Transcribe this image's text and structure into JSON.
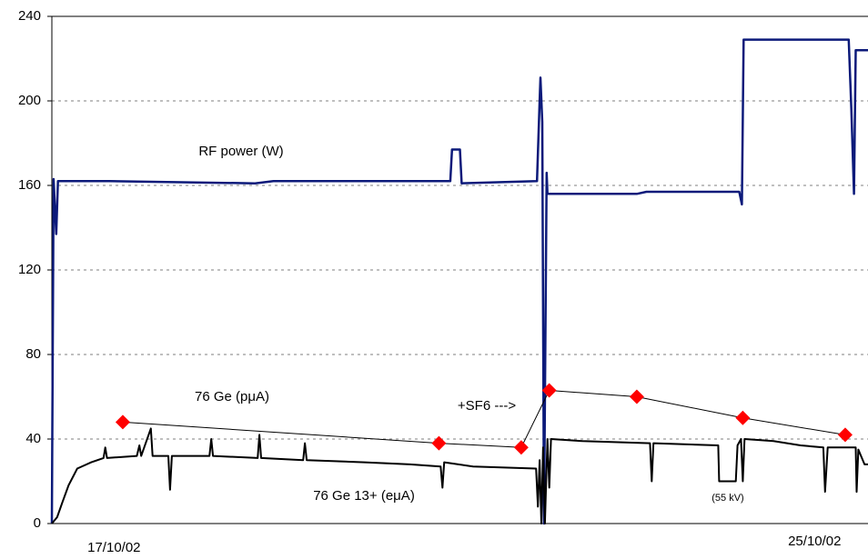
{
  "chart_data": {
    "type": "line",
    "ylim": [
      0,
      240
    ],
    "yticks": [
      0,
      40,
      80,
      120,
      160,
      200,
      240
    ],
    "xlim": [
      -0.71,
      8.61
    ],
    "xticks": [
      {
        "value": 0,
        "label": "17/10/02"
      },
      {
        "value": 8,
        "label": "25/10/02"
      }
    ],
    "grid": true,
    "series": [
      {
        "name": "RF power (W)",
        "color": "#0c1a7a",
        "width": 2.5,
        "markers": false,
        "x": [
          -0.71,
          -0.69,
          -0.66,
          -0.64,
          -0.05,
          1.61,
          1.82,
          3.84,
          3.86,
          3.95,
          3.97,
          4.83,
          4.86,
          4.87,
          4.89,
          4.91,
          4.94,
          4.95,
          5.97,
          6.08,
          7.14,
          7.17,
          7.19,
          8.39,
          8.42,
          8.45,
          8.47,
          8.61
        ],
        "values": [
          0,
          163,
          137,
          162,
          162,
          161,
          162,
          162,
          177,
          177,
          161,
          162,
          200,
          211,
          190,
          0,
          166,
          156,
          156,
          157,
          157,
          151,
          229,
          229,
          196,
          156,
          224,
          224
        ]
      },
      {
        "name": "76 Ge (pμA)",
        "color": "#000000",
        "width": 1,
        "markers": true,
        "marker_color": "#ff0000",
        "x": [
          0.1,
          3.71,
          4.65,
          4.97,
          5.97,
          7.18,
          8.35
        ],
        "values": [
          48,
          38,
          36,
          63,
          60,
          50,
          42
        ]
      },
      {
        "name": "76 Ge 13+ (eμA)",
        "color": "#000000",
        "width": 2,
        "markers": false,
        "x": [
          -0.71,
          -0.65,
          -0.59,
          -0.52,
          -0.42,
          -0.26,
          -0.12,
          -0.1,
          -0.08,
          0.26,
          0.29,
          0.31,
          0.42,
          0.44,
          0.62,
          0.64,
          0.66,
          1.09,
          1.11,
          1.13,
          1.64,
          1.66,
          1.68,
          2.16,
          2.18,
          2.2,
          2.86,
          3.38,
          3.73,
          3.75,
          3.77,
          4.1,
          4.82,
          4.84,
          4.86,
          4.88,
          4.9,
          4.92,
          4.95,
          4.97,
          4.99,
          5.35,
          6.12,
          6.14,
          6.16,
          6.9,
          6.91,
          7.1,
          7.12,
          7.16,
          7.18,
          7.2,
          7.53,
          7.84,
          8.1,
          8.12,
          8.15,
          8.47,
          8.48,
          8.5,
          8.57,
          8.61
        ],
        "values": [
          0,
          3,
          10,
          18,
          26,
          29,
          31,
          36,
          31,
          32,
          37,
          32,
          45,
          32,
          32,
          16,
          32,
          32,
          40,
          32,
          31,
          42,
          31,
          30,
          38,
          30,
          29,
          28,
          27,
          17,
          29,
          27,
          26,
          8,
          30,
          0,
          36,
          0,
          40,
          17,
          40,
          39,
          38,
          20,
          38,
          37,
          20,
          20,
          37,
          40,
          20,
          40,
          39,
          37,
          36,
          15,
          36,
          36,
          15,
          35,
          28,
          28
        ]
      }
    ],
    "annotations": [
      "+SF6 --->",
      "(55 kV)"
    ]
  }
}
